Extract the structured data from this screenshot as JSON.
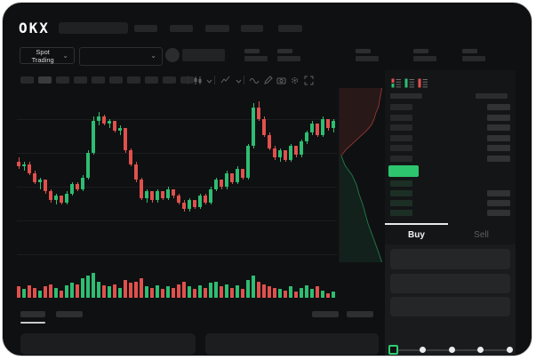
{
  "colors": {
    "green": "#2ebd72",
    "red": "#e0514d",
    "green_bright": "#2ec56f"
  },
  "header": {
    "logo": "OKX"
  },
  "icons": {
    "caret_down": "⌄"
  },
  "market_bar": {
    "mode_label": "Spot Trading"
  },
  "order_book": {
    "ask_rows": 6,
    "bid_rows": 4
  },
  "trade_panel": {
    "buy_label": "Buy",
    "sell_label": "Sell",
    "percent_steps": 5
  },
  "chart_data": {
    "type": "candlestick",
    "title": "",
    "price_range": [
      28,
      80
    ],
    "grid": true,
    "candles": [
      [
        52,
        54,
        49,
        50
      ],
      [
        50,
        52,
        48,
        51
      ],
      [
        51,
        52,
        46,
        47
      ],
      [
        47,
        48,
        42,
        43
      ],
      [
        43,
        45,
        40,
        44
      ],
      [
        44,
        44,
        38,
        39
      ],
      [
        39,
        40,
        34,
        35
      ],
      [
        35,
        38,
        33,
        37
      ],
      [
        37,
        37,
        33,
        34
      ],
      [
        34,
        39,
        33,
        38
      ],
      [
        38,
        43,
        37,
        42
      ],
      [
        42,
        43,
        39,
        40
      ],
      [
        40,
        46,
        39,
        45
      ],
      [
        45,
        57,
        44,
        56
      ],
      [
        56,
        72,
        55,
        70
      ],
      [
        70,
        74,
        68,
        72
      ],
      [
        72,
        73,
        68,
        69
      ],
      [
        69,
        71,
        67,
        70
      ],
      [
        70,
        70,
        65,
        66
      ],
      [
        66,
        68,
        64,
        67
      ],
      [
        67,
        67,
        56,
        57
      ],
      [
        57,
        58,
        50,
        51
      ],
      [
        51,
        52,
        43,
        44
      ],
      [
        44,
        45,
        35,
        36
      ],
      [
        36,
        40,
        34,
        39
      ],
      [
        39,
        39,
        34,
        35
      ],
      [
        35,
        40,
        34,
        39
      ],
      [
        39,
        39,
        35,
        36
      ],
      [
        36,
        41,
        35,
        40
      ],
      [
        40,
        40,
        36,
        37
      ],
      [
        37,
        38,
        33,
        34
      ],
      [
        34,
        35,
        30,
        31
      ],
      [
        31,
        36,
        30,
        35
      ],
      [
        35,
        35,
        31,
        32
      ],
      [
        32,
        38,
        31,
        37
      ],
      [
        37,
        38,
        33,
        34
      ],
      [
        34,
        41,
        33,
        40
      ],
      [
        40,
        45,
        39,
        44
      ],
      [
        44,
        44,
        40,
        41
      ],
      [
        41,
        48,
        40,
        47
      ],
      [
        47,
        47,
        42,
        43
      ],
      [
        43,
        50,
        42,
        49
      ],
      [
        49,
        49,
        44,
        45
      ],
      [
        45,
        60,
        44,
        59
      ],
      [
        59,
        78,
        58,
        76
      ],
      [
        76,
        79,
        70,
        71
      ],
      [
        71,
        72,
        63,
        64
      ],
      [
        64,
        65,
        57,
        58
      ],
      [
        58,
        59,
        53,
        54
      ],
      [
        54,
        58,
        52,
        57
      ],
      [
        57,
        57,
        52,
        53
      ],
      [
        53,
        60,
        52,
        59
      ],
      [
        59,
        59,
        54,
        55
      ],
      [
        55,
        62,
        54,
        61
      ],
      [
        61,
        66,
        60,
        65
      ],
      [
        65,
        70,
        64,
        69
      ],
      [
        69,
        69,
        63,
        64
      ],
      [
        64,
        72,
        63,
        71
      ],
      [
        71,
        71,
        66,
        67
      ],
      [
        67,
        71,
        65,
        70
      ]
    ],
    "volumes": [
      0.45,
      0.35,
      0.5,
      0.4,
      0.3,
      0.45,
      0.55,
      0.4,
      0.3,
      0.5,
      0.6,
      0.55,
      0.8,
      0.9,
      1.0,
      0.65,
      0.5,
      0.45,
      0.55,
      0.4,
      0.7,
      0.6,
      0.65,
      0.8,
      0.45,
      0.4,
      0.5,
      0.35,
      0.45,
      0.4,
      0.55,
      0.65,
      0.45,
      0.35,
      0.5,
      0.4,
      0.6,
      0.65,
      0.45,
      0.55,
      0.4,
      0.5,
      0.35,
      0.7,
      0.9,
      0.65,
      0.55,
      0.45,
      0.4,
      0.35,
      0.3,
      0.45,
      0.25,
      0.4,
      0.5,
      0.35,
      0.45,
      0.3,
      0.18,
      0.25
    ],
    "depth": {
      "asks": [
        0.95,
        0.93,
        0.9,
        0.88,
        0.82,
        0.78,
        0.72,
        0.6,
        0.45,
        0.3,
        0.15,
        0.04
      ],
      "bids": [
        0.04,
        0.12,
        0.28,
        0.38,
        0.44,
        0.52,
        0.58,
        0.64,
        0.72,
        0.8,
        0.88,
        0.95
      ]
    }
  }
}
